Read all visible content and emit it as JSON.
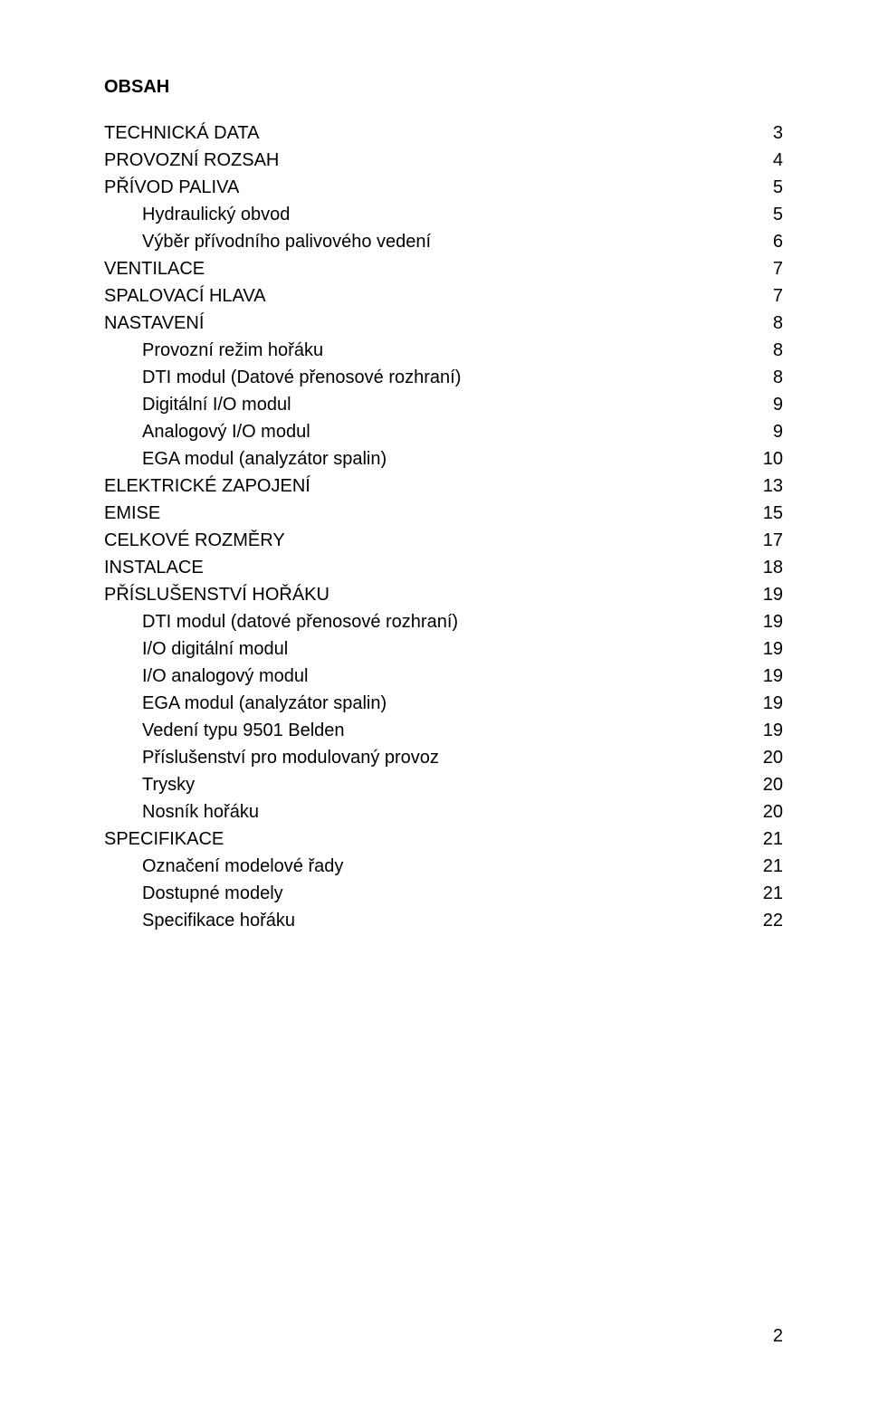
{
  "heading": "OBSAH",
  "page_number": "2",
  "font_size": 20,
  "text_color": "#000000",
  "background_color": "#ffffff",
  "entries": [
    {
      "label": "TECHNICKÁ DATA",
      "page": "3",
      "indent": 0
    },
    {
      "label": "PROVOZNÍ ROZSAH",
      "page": "4",
      "indent": 0
    },
    {
      "label": "PŘÍVOD PALIVA",
      "page": "5",
      "indent": 0
    },
    {
      "label": "Hydraulický obvod",
      "page": "5",
      "indent": 1
    },
    {
      "label": "Výběr přívodního palivového vedení",
      "page": "6",
      "indent": 1
    },
    {
      "label": "VENTILACE",
      "page": "7",
      "indent": 0
    },
    {
      "label": "SPALOVACÍ HLAVA",
      "page": "7",
      "indent": 0
    },
    {
      "label": "NASTAVENÍ",
      "page": "8",
      "indent": 0
    },
    {
      "label": "Provozní režim hořáku",
      "page": "8",
      "indent": 1
    },
    {
      "label": "DTI modul (Datové přenosové rozhraní)",
      "page": "8",
      "indent": 1
    },
    {
      "label": "Digitální I/O modul",
      "page": "9",
      "indent": 1
    },
    {
      "label": "Analogový I/O modul",
      "page": "9",
      "indent": 1
    },
    {
      "label": "EGA modul (analyzátor spalin)",
      "page": "10",
      "indent": 1
    },
    {
      "label": "ELEKTRICKÉ ZAPOJENÍ",
      "page": "13",
      "indent": 0
    },
    {
      "label": "EMISE",
      "page": "15",
      "indent": 0
    },
    {
      "label": "CELKOVÉ ROZMĚRY",
      "page": "17",
      "indent": 0
    },
    {
      "label": "INSTALACE",
      "page": "18",
      "indent": 0
    },
    {
      "label": "PŘÍSLUŠENSTVÍ HOŘÁKU",
      "page": "19",
      "indent": 0
    },
    {
      "label": "DTI modul (datové přenosové rozhraní)",
      "page": "19",
      "indent": 1
    },
    {
      "label": "I/O digitální modul",
      "page": "19",
      "indent": 1
    },
    {
      "label": "I/O analogový modul",
      "page": "19",
      "indent": 1
    },
    {
      "label": "EGA modul (analyzátor spalin)",
      "page": "19",
      "indent": 1
    },
    {
      "label": "Vedení typu 9501 Belden",
      "page": "19",
      "indent": 1
    },
    {
      "label": "Příslušenství pro modulovaný provoz",
      "page": "20",
      "indent": 1
    },
    {
      "label": "Trysky",
      "page": "20",
      "indent": 1
    },
    {
      "label": "Nosník hořáku",
      "page": "20",
      "indent": 1
    },
    {
      "label": "SPECIFIKACE",
      "page": "21",
      "indent": 0
    },
    {
      "label": "Označení modelové řady",
      "page": "21",
      "indent": 1
    },
    {
      "label": "Dostupné modely",
      "page": "21",
      "indent": 1
    },
    {
      "label": "Specifikace hořáku",
      "page": "22",
      "indent": 1
    }
  ]
}
